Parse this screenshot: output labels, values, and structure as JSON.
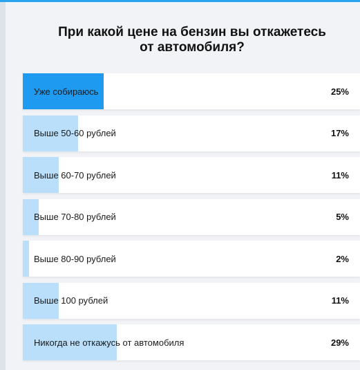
{
  "poll": {
    "title_line1": "При какой цене на бензин вы откажетесь",
    "title_line2": "от автомобиля?",
    "options": [
      {
        "label": "Уже собираюсь",
        "percent": "25%",
        "value": 25,
        "selected": true
      },
      {
        "label": "Выше 50-60 рублей",
        "percent": "17%",
        "value": 17,
        "selected": false
      },
      {
        "label": "Выше 60-70 рублей",
        "percent": "11%",
        "value": 11,
        "selected": false
      },
      {
        "label": "Выше 70-80 рублей",
        "percent": "5%",
        "value": 5,
        "selected": false
      },
      {
        "label": "Выше 80-90 рублей",
        "percent": "2%",
        "value": 2,
        "selected": false
      },
      {
        "label": "Выше 100 рублей",
        "percent": "11%",
        "value": 11,
        "selected": false
      },
      {
        "label": "Никогда не откажусь от автомобиля",
        "percent": "29%",
        "value": 29,
        "selected": false
      }
    ]
  },
  "colors": {
    "accent": "#1e9bf0",
    "bar": "#b9dffb",
    "top_line": "#2aa3ef"
  }
}
